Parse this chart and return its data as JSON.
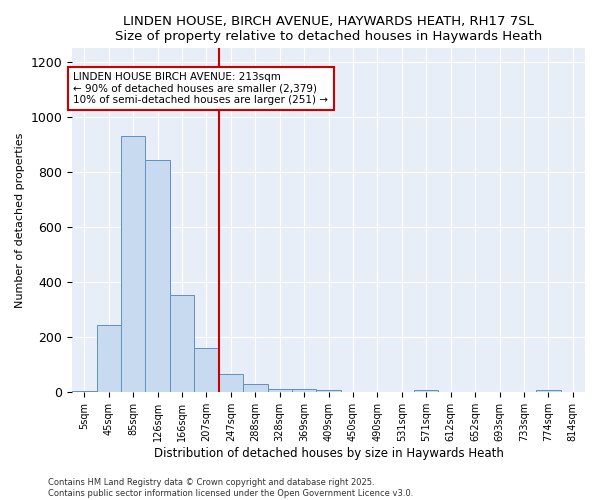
{
  "title": "LINDEN HOUSE, BIRCH AVENUE, HAYWARDS HEATH, RH17 7SL",
  "subtitle": "Size of property relative to detached houses in Haywards Heath",
  "xlabel": "Distribution of detached houses by size in Haywards Heath",
  "ylabel": "Number of detached properties",
  "bin_labels": [
    "5sqm",
    "45sqm",
    "85sqm",
    "126sqm",
    "166sqm",
    "207sqm",
    "247sqm",
    "288sqm",
    "328sqm",
    "369sqm",
    "409sqm",
    "450sqm",
    "490sqm",
    "531sqm",
    "571sqm",
    "612sqm",
    "652sqm",
    "693sqm",
    "733sqm",
    "774sqm",
    "814sqm"
  ],
  "values": [
    5,
    245,
    930,
    845,
    355,
    160,
    65,
    30,
    12,
    12,
    10,
    0,
    0,
    0,
    10,
    0,
    0,
    0,
    0,
    10,
    0
  ],
  "bar_color": "#c8daf0",
  "bar_edge_color": "#6090c0",
  "vline_index": 5,
  "vline_color": "#cc0000",
  "annotation_title": "LINDEN HOUSE BIRCH AVENUE: 213sqm",
  "annotation_line1": "← 90% of detached houses are smaller (2,379)",
  "annotation_line2": "10% of semi-detached houses are larger (251) →",
  "annotation_box_color": "#cc0000",
  "ylim": [
    0,
    1250
  ],
  "yticks": [
    0,
    200,
    400,
    600,
    800,
    1000,
    1200
  ],
  "background_color": "#e8eef8",
  "footer_line1": "Contains HM Land Registry data © Crown copyright and database right 2025.",
  "footer_line2": "Contains public sector information licensed under the Open Government Licence v3.0."
}
